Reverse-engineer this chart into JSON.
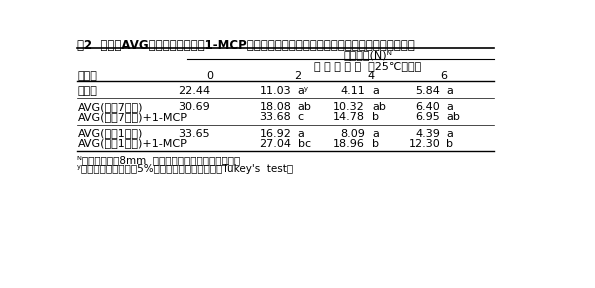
{
  "title": "表2  収穫前AVG処理および収穫後1-MCP処理がモモ果実「あかつき」の果肉硬度に及ぼす影響",
  "col_header_main": "果肉硬度(N)ᴺ",
  "col_header_sub": "収 穫 後 日 数  （25℃貯蔵）",
  "col_header_days": [
    "0",
    "2",
    "4",
    "6"
  ],
  "row_label_header": "処理区",
  "rows": [
    {
      "label": "無処理",
      "val0": "22.44",
      "val2": "11.03",
      "sig2": "aʸ",
      "val4": "4.11",
      "sig4": "a",
      "val6": "5.84",
      "sig6": "a"
    },
    {
      "label": "AVG(収穫7日前)",
      "val0": "30.69",
      "val2": "18.08",
      "sig2": "ab",
      "val4": "10.32",
      "sig4": "ab",
      "val6": "6.40",
      "sig6": "a"
    },
    {
      "label": "AVG(収穫7日前)+1-MCP",
      "val0": "",
      "val2": "33.68",
      "sig2": "c",
      "val4": "14.78",
      "sig4": "b",
      "val6": "6.95",
      "sig6": "ab"
    },
    {
      "label": "AVG(収穫1日前)",
      "val0": "33.65",
      "val2": "16.92",
      "sig2": "a",
      "val4": "8.09",
      "sig4": "a",
      "val6": "4.39",
      "sig6": "a"
    },
    {
      "label": "AVG(収穫1日前)+1-MCP",
      "val0": "",
      "val2": "27.04",
      "sig2": "bc",
      "val4": "18.96",
      "sig4": "b",
      "val6": "12.30",
      "sig6": "b"
    }
  ],
  "footnotes": [
    "ᴺ硬度計（直径8mm  円柱形プローブ）を用いて測定",
    "ʸ異なる英小文字間に5%の危険率で有意差あり（Tukey's  test）"
  ],
  "bg_color": "#ffffff",
  "text_color": "#000000",
  "font_size_title": 8.5,
  "font_size_body": 8.0,
  "font_size_footnote": 7.5
}
